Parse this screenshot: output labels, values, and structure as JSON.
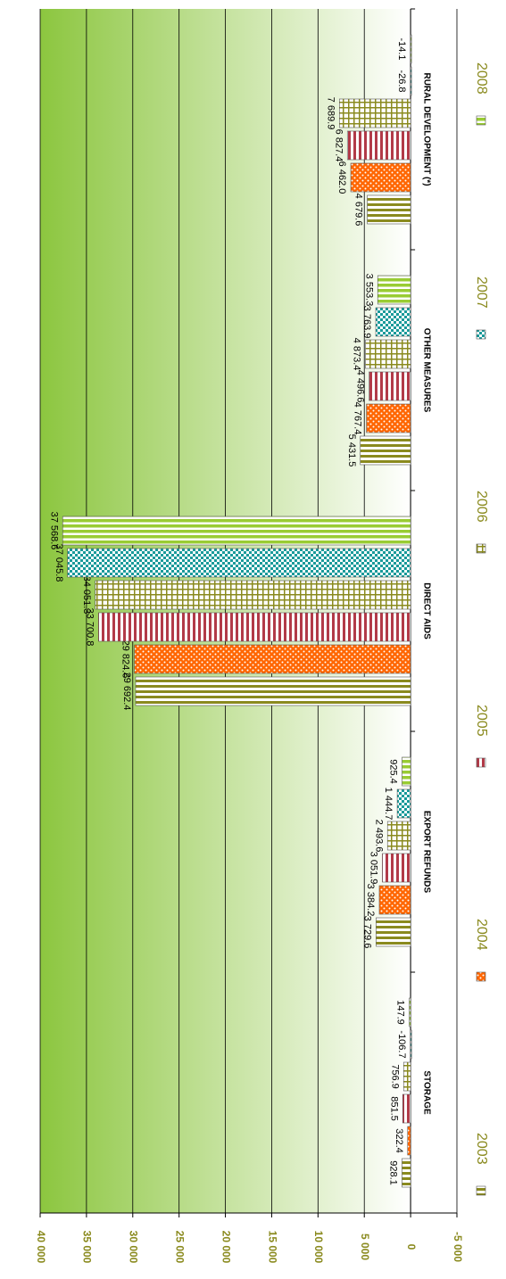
{
  "chart_data": {
    "type": "bar",
    "orientation": "horizontal",
    "categories": [
      "STORAGE",
      "EXPORT REFUNDS",
      "DIRECT AIDS",
      "OTHER MEASURES",
      "RURAL DEVELOPMENT (*)"
    ],
    "series": [
      {
        "name": "2003",
        "color": "#8a8a1e",
        "values": [
          928.1,
          3729.6,
          29692.4,
          5431.5,
          4679.6
        ],
        "value_labels": [
          "928.1",
          "3 729.6",
          "29 692.4",
          "5 431.5",
          "4 679.6"
        ]
      },
      {
        "name": "2004",
        "color": "#ff6600",
        "values": [
          322.4,
          3384.2,
          29824.6,
          4767.4,
          6462.0
        ],
        "value_labels": [
          "322.4",
          "3 384.2",
          "29 824.6",
          "4 767.4",
          "6 462.0"
        ]
      },
      {
        "name": "2005",
        "color": "#b23a48",
        "values": [
          851.5,
          3051.9,
          33700.8,
          4496.6,
          6827.4
        ],
        "value_labels": [
          "851.5",
          "3 051.9",
          "33 700.8",
          "4 496.6",
          "6 827.4"
        ]
      },
      {
        "name": "2006",
        "color": "#8a8a1e",
        "values": [
          756.9,
          2493.6,
          34051.3,
          4873.4,
          7689.9
        ],
        "value_labels": [
          "756.9",
          "2 493.6",
          "34 051.3",
          "4 873.4",
          "7 689.9"
        ]
      },
      {
        "name": "2007",
        "color": "#1a9a9a",
        "values": [
          -106.7,
          1444.7,
          37045.8,
          3763.9,
          -26.8
        ],
        "value_labels": [
          "-106.7",
          "1 444.7",
          "37 045.8",
          "3 763.9",
          "-26.8"
        ]
      },
      {
        "name": "2008",
        "color": "#99cc33",
        "values": [
          147.9,
          925.4,
          37568.6,
          3553.3,
          -14.1
        ],
        "value_labels": [
          "147.9",
          "925.4",
          "37 568.6",
          "3 553.3",
          "-14.1"
        ]
      }
    ],
    "xlim": [
      40000,
      -5000
    ],
    "xticks": [
      {
        "value": 40000,
        "label": "40 000"
      },
      {
        "value": 35000,
        "label": "35 000"
      },
      {
        "value": 30000,
        "label": "30 000"
      },
      {
        "value": 25000,
        "label": "25 000"
      },
      {
        "value": 20000,
        "label": "20 000"
      },
      {
        "value": 15000,
        "label": "15 000"
      },
      {
        "value": 10000,
        "label": "10 000"
      },
      {
        "value": 5000,
        "label": "5 000"
      },
      0,
      {
        "value": -5000,
        "label": "-5 000"
      }
    ],
    "grid": true
  }
}
